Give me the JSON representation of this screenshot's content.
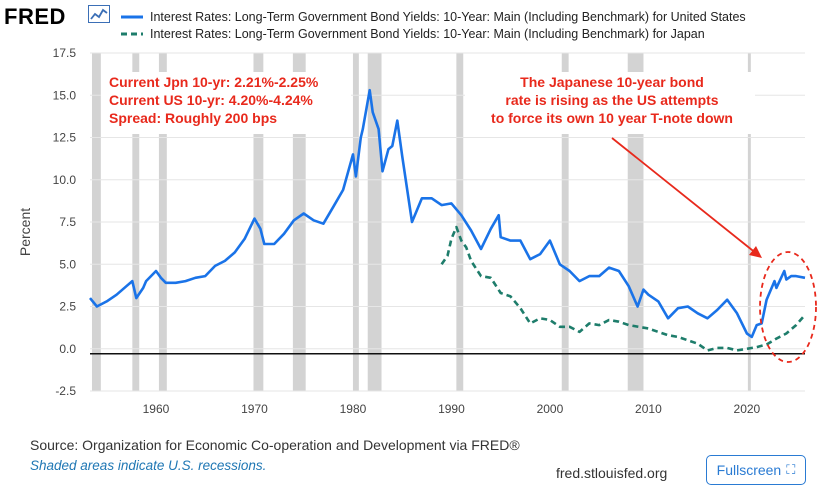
{
  "header": {
    "logo_text": "FRED"
  },
  "legend": [
    {
      "label": "Interest Rates: Long-Term Government Bond Yields: 10-Year: Main (Including Benchmark) for United States",
      "color": "#1a73e8",
      "style": "solid"
    },
    {
      "label": "Interest Rates: Long-Term Government Bond Yields: 10-Year: Main (Including Benchmark) for Japan",
      "color": "#1e7d6b",
      "style": "dashed"
    }
  ],
  "footer": {
    "source": "Source: Organization for Economic Co-operation and Development via FRED®",
    "recession_note": "Shaded areas indicate U.S. recessions.",
    "site": "fred.stlouisfed.org",
    "fullscreen_label": "Fullscreen"
  },
  "chart_data": {
    "type": "line",
    "ylabel": "Percent",
    "xlim": [
      1953.3,
      2025.9
    ],
    "ylim": [
      -2.5,
      17.5
    ],
    "yticks": [
      "-2.5",
      "0.0",
      "2.5",
      "5.0",
      "7.5",
      "10.0",
      "12.5",
      "15.0",
      "17.5"
    ],
    "xticks": [
      "1960",
      "1970",
      "1980",
      "1990",
      "2000",
      "2010",
      "2020"
    ],
    "grid": "horizontal",
    "zero_line": true,
    "recessions": [
      [
        1953.5,
        1954.4
      ],
      [
        1957.6,
        1958.3
      ],
      [
        1960.3,
        1961.1
      ],
      [
        1969.9,
        1970.9
      ],
      [
        1973.9,
        1975.2
      ],
      [
        1980.0,
        1980.6
      ],
      [
        1981.5,
        1982.9
      ],
      [
        1990.5,
        1991.2
      ],
      [
        2001.2,
        2001.9
      ],
      [
        2007.9,
        2009.5
      ],
      [
        2020.1,
        2020.4
      ]
    ],
    "series": [
      {
        "name": "United States",
        "color": "#1a73e8",
        "points": [
          [
            1953.3,
            3.0
          ],
          [
            1954.0,
            2.5
          ],
          [
            1955.0,
            2.8
          ],
          [
            1956.0,
            3.2
          ],
          [
            1957.0,
            3.7
          ],
          [
            1957.6,
            4.0
          ],
          [
            1958.0,
            3.0
          ],
          [
            1958.7,
            3.6
          ],
          [
            1959.0,
            4.0
          ],
          [
            1960.0,
            4.6
          ],
          [
            1960.5,
            4.2
          ],
          [
            1961.0,
            3.9
          ],
          [
            1962.0,
            3.9
          ],
          [
            1963.0,
            4.0
          ],
          [
            1964.0,
            4.2
          ],
          [
            1965.0,
            4.3
          ],
          [
            1966.0,
            4.9
          ],
          [
            1967.0,
            5.2
          ],
          [
            1968.0,
            5.7
          ],
          [
            1969.0,
            6.5
          ],
          [
            1970.0,
            7.7
          ],
          [
            1970.6,
            7.1
          ],
          [
            1971.0,
            6.2
          ],
          [
            1972.0,
            6.2
          ],
          [
            1973.0,
            6.8
          ],
          [
            1974.0,
            7.6
          ],
          [
            1975.0,
            8.0
          ],
          [
            1976.0,
            7.6
          ],
          [
            1977.0,
            7.4
          ],
          [
            1978.0,
            8.4
          ],
          [
            1979.0,
            9.4
          ],
          [
            1980.0,
            11.5
          ],
          [
            1980.3,
            10.2
          ],
          [
            1980.8,
            12.5
          ],
          [
            1981.0,
            13.0
          ],
          [
            1981.7,
            15.3
          ],
          [
            1982.0,
            14.0
          ],
          [
            1982.6,
            13.0
          ],
          [
            1983.0,
            10.5
          ],
          [
            1983.6,
            11.8
          ],
          [
            1984.0,
            12.0
          ],
          [
            1984.5,
            13.5
          ],
          [
            1985.0,
            11.4
          ],
          [
            1986.0,
            7.5
          ],
          [
            1987.0,
            8.9
          ],
          [
            1988.0,
            8.9
          ],
          [
            1989.0,
            8.5
          ],
          [
            1990.0,
            8.6
          ],
          [
            1991.0,
            7.9
          ],
          [
            1992.0,
            7.0
          ],
          [
            1993.0,
            5.9
          ],
          [
            1994.0,
            7.1
          ],
          [
            1994.8,
            7.9
          ],
          [
            1995.0,
            6.6
          ],
          [
            1996.0,
            6.4
          ],
          [
            1997.0,
            6.4
          ],
          [
            1998.0,
            5.3
          ],
          [
            1999.0,
            5.6
          ],
          [
            2000.0,
            6.4
          ],
          [
            2001.0,
            5.0
          ],
          [
            2002.0,
            4.6
          ],
          [
            2003.0,
            4.0
          ],
          [
            2004.0,
            4.3
          ],
          [
            2005.0,
            4.3
          ],
          [
            2006.0,
            4.8
          ],
          [
            2007.0,
            4.6
          ],
          [
            2008.0,
            3.7
          ],
          [
            2008.9,
            2.5
          ],
          [
            2009.5,
            3.5
          ],
          [
            2010.0,
            3.2
          ],
          [
            2011.0,
            2.8
          ],
          [
            2012.0,
            1.8
          ],
          [
            2013.0,
            2.4
          ],
          [
            2014.0,
            2.5
          ],
          [
            2015.0,
            2.1
          ],
          [
            2016.0,
            1.8
          ],
          [
            2017.0,
            2.3
          ],
          [
            2018.0,
            2.9
          ],
          [
            2019.0,
            2.1
          ],
          [
            2020.0,
            0.9
          ],
          [
            2020.5,
            0.7
          ],
          [
            2021.0,
            1.4
          ],
          [
            2021.5,
            1.5
          ],
          [
            2022.0,
            2.9
          ],
          [
            2022.8,
            4.0
          ],
          [
            2023.0,
            3.6
          ],
          [
            2023.8,
            4.6
          ],
          [
            2024.0,
            4.1
          ],
          [
            2024.5,
            4.3
          ],
          [
            2025.0,
            4.3
          ],
          [
            2025.9,
            4.2
          ]
        ]
      },
      {
        "name": "Japan",
        "color": "#1e7d6b",
        "points": [
          [
            1989.0,
            5.0
          ],
          [
            1989.6,
            5.5
          ],
          [
            1990.0,
            6.5
          ],
          [
            1990.5,
            7.2
          ],
          [
            1991.0,
            6.4
          ],
          [
            1991.5,
            6.0
          ],
          [
            1992.0,
            5.2
          ],
          [
            1993.0,
            4.3
          ],
          [
            1994.0,
            4.2
          ],
          [
            1995.0,
            3.3
          ],
          [
            1996.0,
            3.1
          ],
          [
            1997.0,
            2.4
          ],
          [
            1998.0,
            1.5
          ],
          [
            1999.0,
            1.8
          ],
          [
            2000.0,
            1.7
          ],
          [
            2001.0,
            1.3
          ],
          [
            2002.0,
            1.3
          ],
          [
            2003.0,
            1.0
          ],
          [
            2004.0,
            1.5
          ],
          [
            2005.0,
            1.4
          ],
          [
            2006.0,
            1.7
          ],
          [
            2007.0,
            1.6
          ],
          [
            2008.0,
            1.4
          ],
          [
            2009.0,
            1.3
          ],
          [
            2010.0,
            1.2
          ],
          [
            2011.0,
            1.0
          ],
          [
            2012.0,
            0.8
          ],
          [
            2013.0,
            0.7
          ],
          [
            2014.0,
            0.5
          ],
          [
            2015.0,
            0.3
          ],
          [
            2016.0,
            -0.1
          ],
          [
            2017.0,
            0.05
          ],
          [
            2018.0,
            0.05
          ],
          [
            2019.0,
            -0.1
          ],
          [
            2020.0,
            0.0
          ],
          [
            2021.0,
            0.1
          ],
          [
            2022.0,
            0.25
          ],
          [
            2023.0,
            0.6
          ],
          [
            2024.0,
            0.9
          ],
          [
            2025.0,
            1.4
          ],
          [
            2025.9,
            2.0
          ]
        ]
      }
    ],
    "annotations": [
      {
        "lines": [
          "Current Jpn 10-yr: 2.21%-2.25%",
          "Current US 10-yr:  4.20%-4.24%",
          "Spread: Roughly 200 bps"
        ],
        "color": "#e8291c"
      },
      {
        "lines": [
          "The Japanese 10-year bond",
          "rate is rising as the US attempts",
          "to force its own 10 year T-note down"
        ],
        "color": "#e8291c"
      }
    ]
  }
}
